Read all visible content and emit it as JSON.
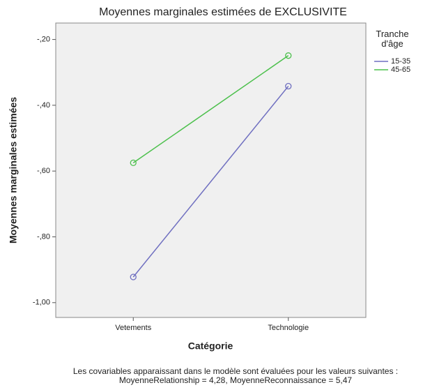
{
  "chart_data": {
    "type": "line",
    "title": "Moyennes marginales estimées de EXCLUSIVITE",
    "x_label": "Catégorie",
    "y_label": "Moyennes marginales estimées",
    "legend_title": "Tranche d'âge",
    "categories": [
      "Vetements",
      "Technologie"
    ],
    "series": [
      {
        "name": "15-35",
        "color": "#6f6fc0",
        "values": [
          -0.922,
          -0.342
        ]
      },
      {
        "name": "45-65",
        "color": "#4cc04c",
        "values": [
          -0.575,
          -0.249
        ]
      }
    ],
    "ylim": [
      -1.045,
      -0.15
    ],
    "yticks": [
      {
        "value": -1.0,
        "label": "-1,00"
      },
      {
        "value": -0.8,
        "label": "-,80"
      },
      {
        "value": -0.6,
        "label": "-,60"
      },
      {
        "value": -0.4,
        "label": "-,40"
      },
      {
        "value": -0.2,
        "label": "-,20"
      }
    ],
    "legend_position": "right",
    "footnote": [
      "Les covariables apparaissant dans le modèle sont évaluées pour les valeurs suivantes :",
      "MoyenneRelationship = 4,28, MoyenneReconnaissance = 5,47"
    ]
  }
}
